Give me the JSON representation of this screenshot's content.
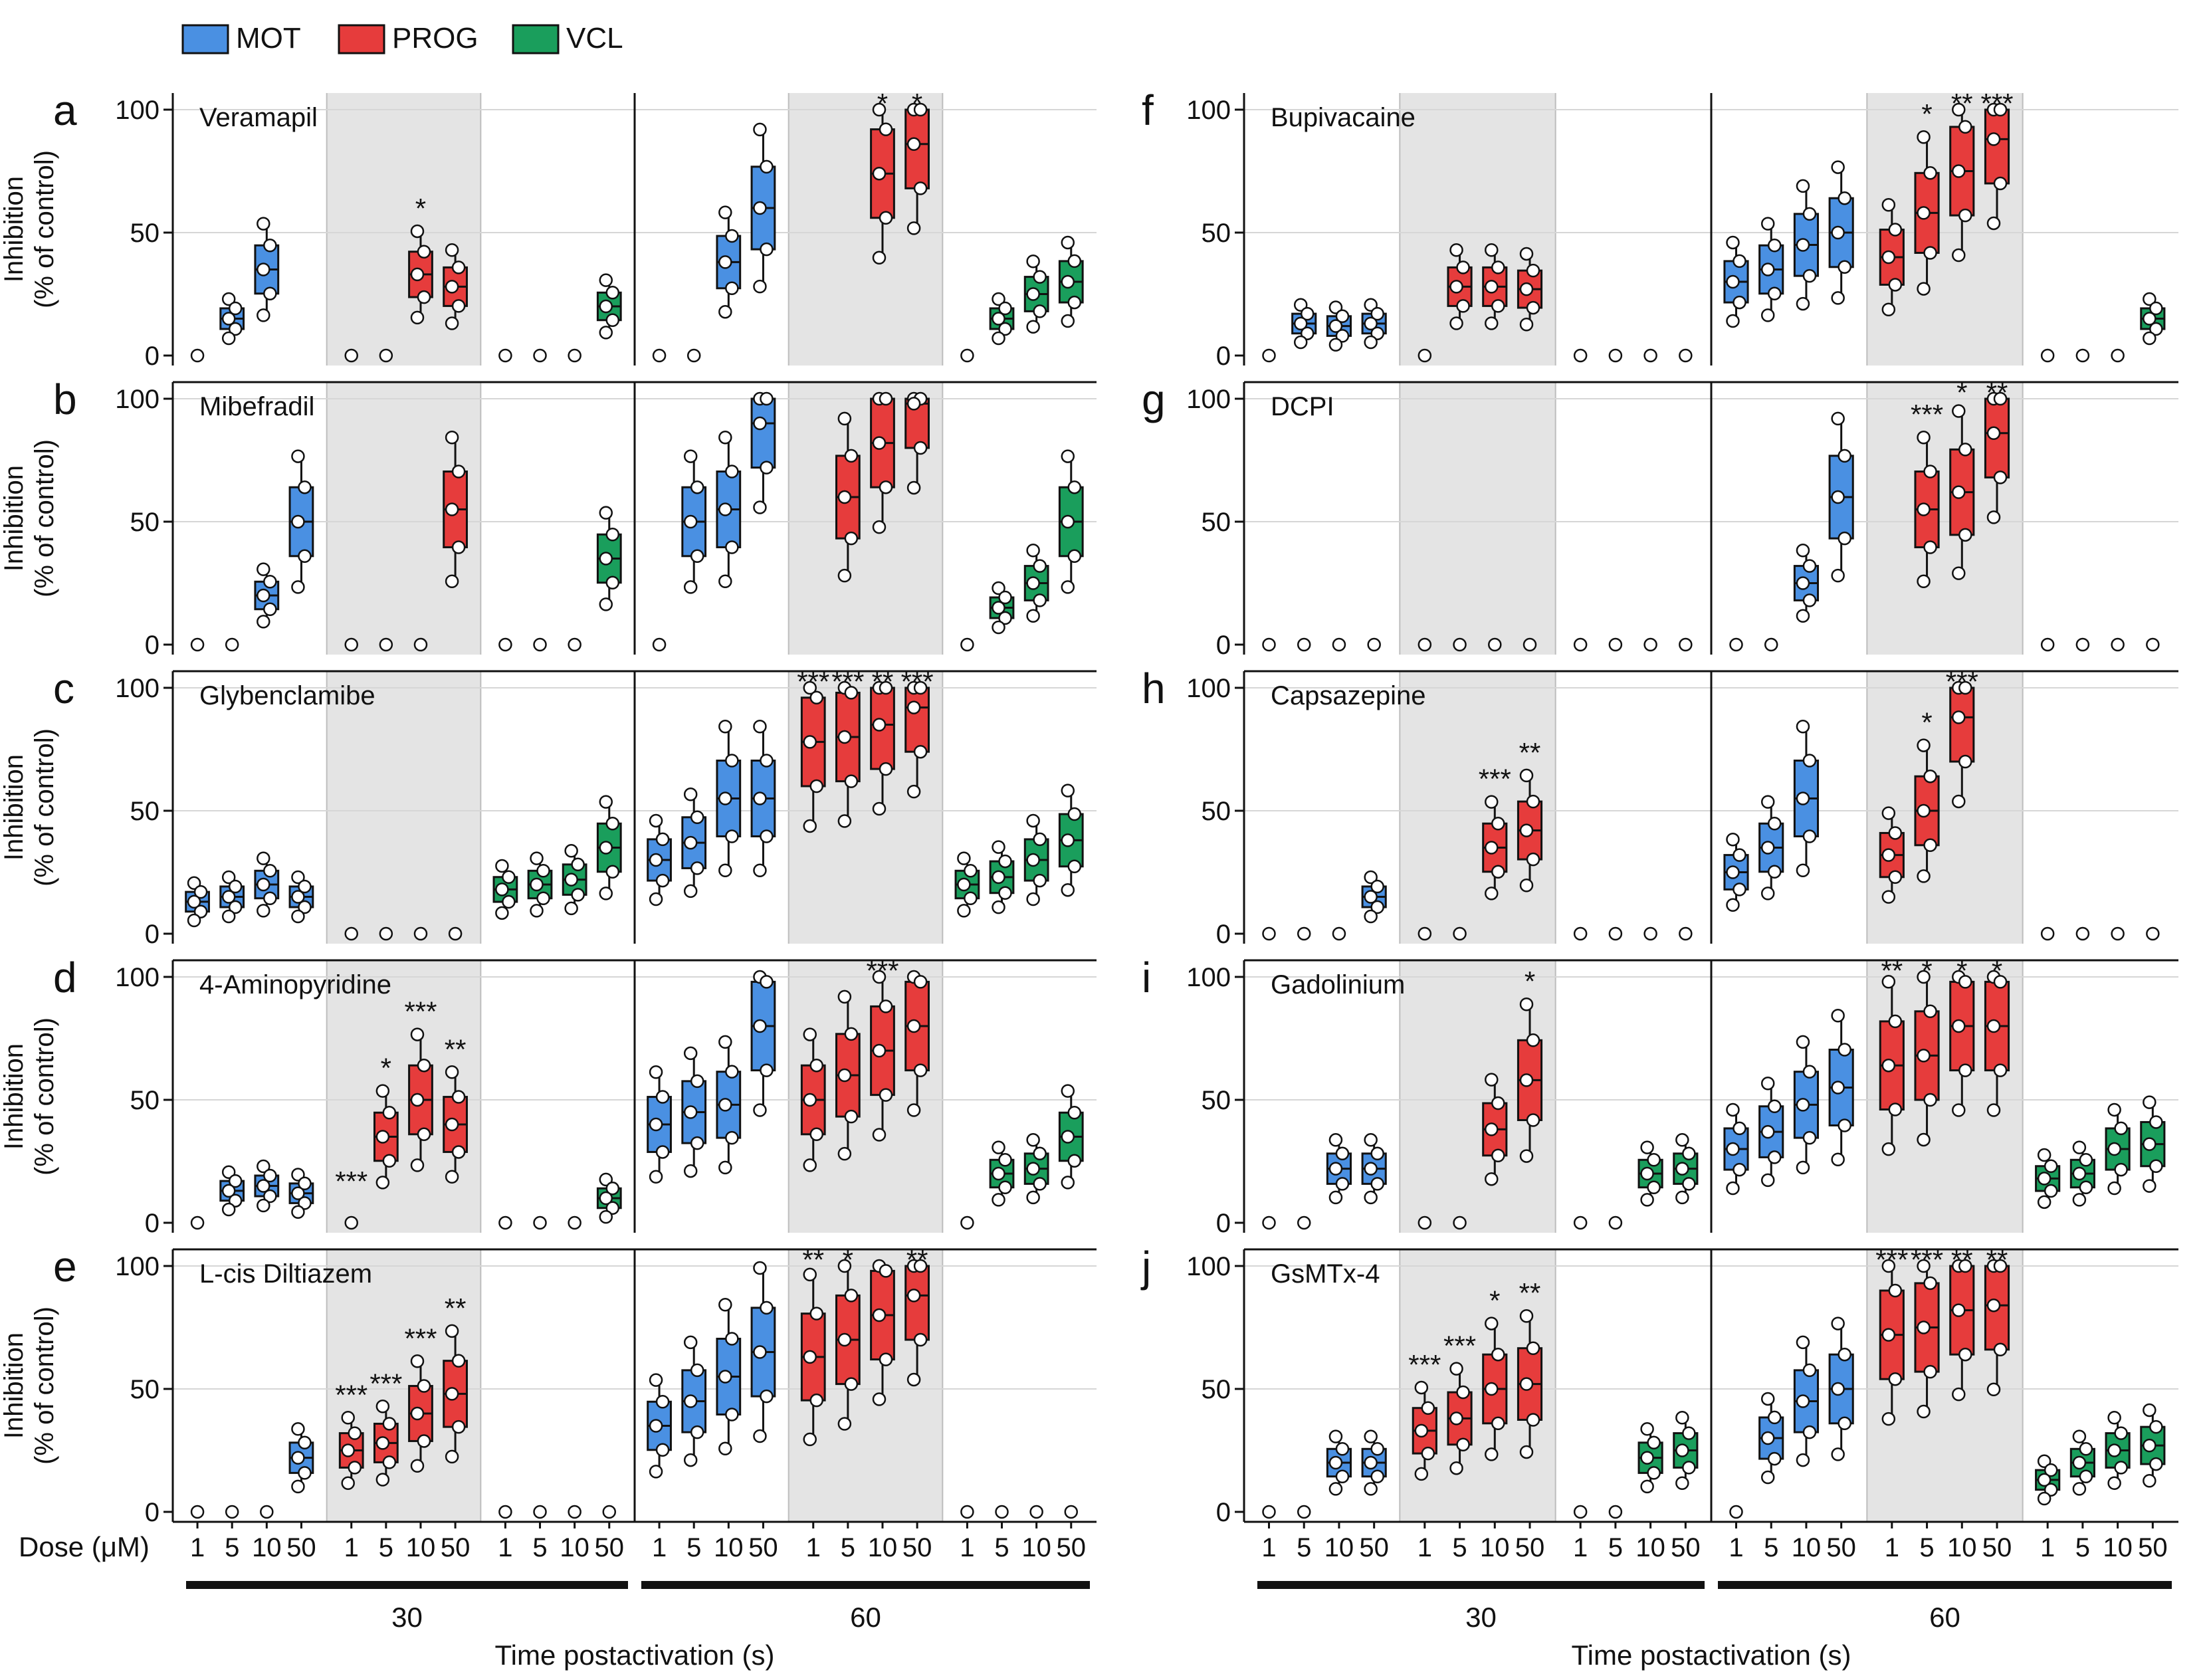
{
  "legend": [
    {
      "name": "MOT",
      "color": "#4a90e2"
    },
    {
      "name": "PROG",
      "color": "#e63c3c"
    },
    {
      "name": "VCL",
      "color": "#1a9e5c"
    }
  ],
  "shared": {
    "ylabel_line1": "Inhibition",
    "ylabel_line2": "(% of control)",
    "dose_label": "Dose (μM)",
    "doses": [
      "1",
      "5",
      "10",
      "50"
    ],
    "time_groups": [
      "30",
      "60"
    ],
    "xlabel": "Time postactivation (s)",
    "yticks": [
      0,
      50,
      100
    ],
    "ylim": [
      0,
      100
    ]
  },
  "chart_data": [
    {
      "type": "box",
      "letter": "a",
      "title": "Veramapil",
      "groups": [
        {
          "time": "30",
          "series": "MOT",
          "medians": [
            0,
            15,
            35,
            null
          ]
        },
        {
          "time": "30",
          "series": "PROG",
          "medians": [
            0,
            0,
            33,
            28
          ]
        },
        {
          "time": "30",
          "series": "VCL",
          "medians": [
            0,
            0,
            0,
            20
          ]
        },
        {
          "time": "60",
          "series": "MOT",
          "medians": [
            0,
            0,
            38,
            60
          ]
        },
        {
          "time": "60",
          "series": "PROG",
          "medians": [
            null,
            null,
            74,
            86
          ]
        },
        {
          "time": "60",
          "series": "VCL",
          "medians": [
            0,
            15,
            25,
            30
          ]
        }
      ],
      "significance": [
        {
          "time": "30",
          "series": "PROG",
          "dose": "10",
          "stars": "*"
        },
        {
          "time": "60",
          "series": "PROG",
          "dose": "10",
          "stars": "*"
        },
        {
          "time": "60",
          "series": "PROG",
          "dose": "50",
          "stars": "*"
        }
      ]
    },
    {
      "type": "box",
      "letter": "b",
      "title": "Mibefradil",
      "groups": [
        {
          "time": "30",
          "series": "MOT",
          "medians": [
            0,
            0,
            20,
            50
          ]
        },
        {
          "time": "30",
          "series": "PROG",
          "medians": [
            0,
            0,
            0,
            55
          ]
        },
        {
          "time": "30",
          "series": "VCL",
          "medians": [
            0,
            0,
            0,
            35
          ]
        },
        {
          "time": "60",
          "series": "MOT",
          "medians": [
            0,
            50,
            55,
            90
          ]
        },
        {
          "time": "60",
          "series": "PROG",
          "medians": [
            null,
            60,
            82,
            98
          ]
        },
        {
          "time": "60",
          "series": "VCL",
          "medians": [
            0,
            15,
            25,
            50
          ]
        }
      ],
      "significance": []
    },
    {
      "type": "box",
      "letter": "c",
      "title": "Glybenclamibe",
      "groups": [
        {
          "time": "30",
          "series": "MOT",
          "medians": [
            13,
            15,
            20,
            15
          ]
        },
        {
          "time": "30",
          "series": "PROG",
          "medians": [
            0,
            0,
            0,
            0
          ]
        },
        {
          "time": "30",
          "series": "VCL",
          "medians": [
            18,
            20,
            22,
            35
          ]
        },
        {
          "time": "60",
          "series": "MOT",
          "medians": [
            30,
            37,
            55,
            55
          ]
        },
        {
          "time": "60",
          "series": "PROG",
          "medians": [
            78,
            80,
            85,
            92
          ]
        },
        {
          "time": "60",
          "series": "VCL",
          "medians": [
            20,
            23,
            30,
            38
          ]
        }
      ],
      "significance": [
        {
          "time": "60",
          "series": "PROG",
          "dose": "1",
          "stars": "***"
        },
        {
          "time": "60",
          "series": "PROG",
          "dose": "5",
          "stars": "***"
        },
        {
          "time": "60",
          "series": "PROG",
          "dose": "10",
          "stars": "**"
        },
        {
          "time": "60",
          "series": "PROG",
          "dose": "50",
          "stars": "***"
        }
      ]
    },
    {
      "type": "box",
      "letter": "d",
      "title": "4-Aminopyridine",
      "groups": [
        {
          "time": "30",
          "series": "MOT",
          "medians": [
            0,
            13,
            15,
            12
          ]
        },
        {
          "time": "30",
          "series": "PROG",
          "medians": [
            0,
            35,
            50,
            40
          ]
        },
        {
          "time": "30",
          "series": "VCL",
          "medians": [
            0,
            0,
            0,
            10
          ]
        },
        {
          "time": "60",
          "series": "MOT",
          "medians": [
            40,
            45,
            48,
            80
          ]
        },
        {
          "time": "60",
          "series": "PROG",
          "medians": [
            50,
            60,
            70,
            80
          ]
        },
        {
          "time": "60",
          "series": "VCL",
          "medians": [
            0,
            20,
            22,
            35
          ]
        }
      ],
      "significance": [
        {
          "time": "30",
          "series": "PROG",
          "dose": "1",
          "stars": "***"
        },
        {
          "time": "30",
          "series": "PROG",
          "dose": "5",
          "stars": "*"
        },
        {
          "time": "30",
          "series": "PROG",
          "dose": "10",
          "stars": "***"
        },
        {
          "time": "30",
          "series": "PROG",
          "dose": "50",
          "stars": "**"
        },
        {
          "time": "60",
          "series": "PROG",
          "dose": "10",
          "stars": "***"
        }
      ]
    },
    {
      "type": "box",
      "letter": "e",
      "title": "L-cis Diltiazem",
      "groups": [
        {
          "time": "30",
          "series": "MOT",
          "medians": [
            0,
            0,
            0,
            22
          ]
        },
        {
          "time": "30",
          "series": "PROG",
          "medians": [
            25,
            28,
            40,
            48
          ]
        },
        {
          "time": "30",
          "series": "VCL",
          "medians": [
            0,
            0,
            0,
            0
          ]
        },
        {
          "time": "60",
          "series": "MOT",
          "medians": [
            35,
            45,
            55,
            65
          ]
        },
        {
          "time": "60",
          "series": "PROG",
          "medians": [
            63,
            70,
            80,
            88
          ]
        },
        {
          "time": "60",
          "series": "VCL",
          "medians": [
            0,
            0,
            0,
            0
          ]
        }
      ],
      "significance": [
        {
          "time": "30",
          "series": "PROG",
          "dose": "1",
          "stars": "***"
        },
        {
          "time": "30",
          "series": "PROG",
          "dose": "5",
          "stars": "***"
        },
        {
          "time": "30",
          "series": "PROG",
          "dose": "10",
          "stars": "***"
        },
        {
          "time": "30",
          "series": "PROG",
          "dose": "50",
          "stars": "**"
        },
        {
          "time": "60",
          "series": "PROG",
          "dose": "1",
          "stars": "**"
        },
        {
          "time": "60",
          "series": "PROG",
          "dose": "5",
          "stars": "*"
        },
        {
          "time": "60",
          "series": "PROG",
          "dose": "50",
          "stars": "**"
        }
      ]
    },
    {
      "type": "box",
      "letter": "f",
      "title": "Bupivacaine",
      "groups": [
        {
          "time": "30",
          "series": "MOT",
          "medians": [
            0,
            13,
            12,
            13
          ]
        },
        {
          "time": "30",
          "series": "PROG",
          "medians": [
            0,
            28,
            28,
            27
          ]
        },
        {
          "time": "30",
          "series": "VCL",
          "medians": [
            0,
            0,
            0,
            0
          ]
        },
        {
          "time": "60",
          "series": "MOT",
          "medians": [
            30,
            35,
            45,
            50
          ]
        },
        {
          "time": "60",
          "series": "PROG",
          "medians": [
            40,
            58,
            75,
            88
          ]
        },
        {
          "time": "60",
          "series": "VCL",
          "medians": [
            0,
            0,
            0,
            15
          ]
        }
      ],
      "significance": [
        {
          "time": "60",
          "series": "PROG",
          "dose": "5",
          "stars": "*"
        },
        {
          "time": "60",
          "series": "PROG",
          "dose": "10",
          "stars": "**"
        },
        {
          "time": "60",
          "series": "PROG",
          "dose": "50",
          "stars": "***"
        }
      ]
    },
    {
      "type": "box",
      "letter": "g",
      "title": "DCPI",
      "groups": [
        {
          "time": "30",
          "series": "MOT",
          "medians": [
            0,
            0,
            0,
            0
          ]
        },
        {
          "time": "30",
          "series": "PROG",
          "medians": [
            0,
            0,
            0,
            0
          ]
        },
        {
          "time": "30",
          "series": "VCL",
          "medians": [
            0,
            0,
            0,
            0
          ]
        },
        {
          "time": "60",
          "series": "MOT",
          "medians": [
            0,
            0,
            25,
            60
          ]
        },
        {
          "time": "60",
          "series": "PROG",
          "medians": [
            null,
            55,
            62,
            86
          ]
        },
        {
          "time": "60",
          "series": "VCL",
          "medians": [
            0,
            0,
            0,
            0
          ]
        }
      ],
      "significance": [
        {
          "time": "60",
          "series": "PROG",
          "dose": "5",
          "stars": "***"
        },
        {
          "time": "60",
          "series": "PROG",
          "dose": "10",
          "stars": "*"
        },
        {
          "time": "60",
          "series": "PROG",
          "dose": "50",
          "stars": "**"
        }
      ]
    },
    {
      "type": "box",
      "letter": "h",
      "title": "Capsazepine",
      "groups": [
        {
          "time": "30",
          "series": "MOT",
          "medians": [
            0,
            0,
            0,
            15
          ]
        },
        {
          "time": "30",
          "series": "PROG",
          "medians": [
            0,
            0,
            35,
            42
          ]
        },
        {
          "time": "30",
          "series": "VCL",
          "medians": [
            0,
            0,
            0,
            0
          ]
        },
        {
          "time": "60",
          "series": "MOT",
          "medians": [
            25,
            35,
            55,
            null
          ]
        },
        {
          "time": "60",
          "series": "PROG",
          "medians": [
            32,
            50,
            88,
            null
          ]
        },
        {
          "time": "60",
          "series": "VCL",
          "medians": [
            0,
            0,
            0,
            0
          ]
        }
      ],
      "significance": [
        {
          "time": "30",
          "series": "PROG",
          "dose": "10",
          "stars": "***"
        },
        {
          "time": "30",
          "series": "PROG",
          "dose": "50",
          "stars": "**"
        },
        {
          "time": "60",
          "series": "PROG",
          "dose": "5",
          "stars": "*"
        },
        {
          "time": "60",
          "series": "PROG",
          "dose": "10",
          "stars": "***"
        }
      ]
    },
    {
      "type": "box",
      "letter": "i",
      "title": "Gadolinium",
      "groups": [
        {
          "time": "30",
          "series": "MOT",
          "medians": [
            0,
            0,
            22,
            22
          ]
        },
        {
          "time": "30",
          "series": "PROG",
          "medians": [
            0,
            0,
            38,
            58
          ]
        },
        {
          "time": "30",
          "series": "VCL",
          "medians": [
            0,
            0,
            20,
            22
          ]
        },
        {
          "time": "60",
          "series": "MOT",
          "medians": [
            30,
            37,
            48,
            55
          ]
        },
        {
          "time": "60",
          "series": "PROG",
          "medians": [
            64,
            68,
            80,
            80
          ]
        },
        {
          "time": "60",
          "series": "VCL",
          "medians": [
            18,
            20,
            30,
            32
          ]
        }
      ],
      "significance": [
        {
          "time": "30",
          "series": "PROG",
          "dose": "50",
          "stars": "*"
        },
        {
          "time": "60",
          "series": "PROG",
          "dose": "1",
          "stars": "**"
        },
        {
          "time": "60",
          "series": "PROG",
          "dose": "5",
          "stars": "*"
        },
        {
          "time": "60",
          "series": "PROG",
          "dose": "10",
          "stars": "*"
        },
        {
          "time": "60",
          "series": "PROG",
          "dose": "50",
          "stars": "*"
        }
      ]
    },
    {
      "type": "box",
      "letter": "j",
      "title": "GsMTx-4",
      "groups": [
        {
          "time": "30",
          "series": "MOT",
          "medians": [
            0,
            0,
            20,
            20
          ]
        },
        {
          "time": "30",
          "series": "PROG",
          "medians": [
            33,
            38,
            50,
            52
          ]
        },
        {
          "time": "30",
          "series": "VCL",
          "medians": [
            0,
            0,
            22,
            25
          ]
        },
        {
          "time": "60",
          "series": "MOT",
          "medians": [
            0,
            30,
            45,
            50
          ]
        },
        {
          "time": "60",
          "series": "PROG",
          "medians": [
            72,
            75,
            82,
            84
          ]
        },
        {
          "time": "60",
          "series": "VCL",
          "medians": [
            13,
            20,
            25,
            27
          ]
        }
      ],
      "significance": [
        {
          "time": "30",
          "series": "PROG",
          "dose": "1",
          "stars": "***"
        },
        {
          "time": "30",
          "series": "PROG",
          "dose": "5",
          "stars": "***"
        },
        {
          "time": "30",
          "series": "PROG",
          "dose": "10",
          "stars": "*"
        },
        {
          "time": "30",
          "series": "PROG",
          "dose": "50",
          "stars": "**"
        },
        {
          "time": "60",
          "series": "PROG",
          "dose": "1",
          "stars": "***"
        },
        {
          "time": "60",
          "series": "PROG",
          "dose": "5",
          "stars": "***"
        },
        {
          "time": "60",
          "series": "PROG",
          "dose": "10",
          "stars": "**"
        },
        {
          "time": "60",
          "series": "PROG",
          "dose": "50",
          "stars": "**"
        }
      ]
    }
  ]
}
